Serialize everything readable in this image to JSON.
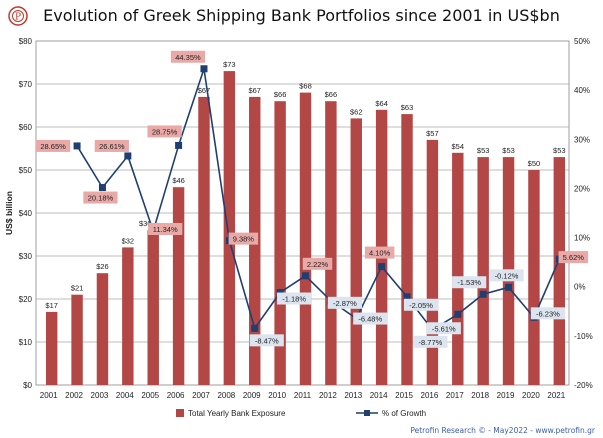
{
  "title": "Evolution of Greek Shipping Bank Portfolios since 2001 in US$bn",
  "footer": "Petrofin Research © - May2022 - www.petrofin.gr",
  "colors": {
    "bar": "#b34745",
    "line": "#1f3f73",
    "label_pos_bg": "#e8a9a7",
    "label_neg_bg": "#dbe4ef"
  },
  "chart_data": {
    "type": "bar",
    "categories": [
      "2001",
      "2002",
      "2003",
      "2004",
      "2005",
      "2006",
      "2007",
      "2008",
      "2009",
      "2010",
      "2011",
      "2012",
      "2013",
      "2014",
      "2015",
      "2016",
      "2017",
      "2018",
      "2019",
      "2020",
      "2021"
    ],
    "ylabel": "US$ billion",
    "ylim": [
      0,
      80
    ],
    "y_ticks": [
      "$0",
      "$10",
      "$20",
      "$30",
      "$40",
      "$50",
      "$60",
      "$70",
      "$80"
    ],
    "y2lim": [
      -20,
      50
    ],
    "y2_ticks": [
      "-20%",
      "-10%",
      "0%",
      "10%",
      "20%",
      "30%",
      "40%",
      "50%"
    ],
    "grid": true,
    "legend": "bottom",
    "series": [
      {
        "name": "Total Yearly Bank Exposure",
        "type": "bar",
        "axis": "left",
        "values": [
          17,
          21,
          26,
          32,
          36,
          46,
          67,
          73,
          67,
          66,
          68,
          66,
          62,
          64,
          63,
          57,
          54,
          53,
          53,
          50,
          53
        ],
        "labels": [
          "$17",
          "$21",
          "$26",
          "$32",
          "$36",
          "$46",
          "$67",
          "$73",
          "$67",
          "$66",
          "$68",
          "$66",
          "$62",
          "$64",
          "$63",
          "$57",
          "$54",
          "$53",
          "$53",
          "$50",
          "$53"
        ]
      },
      {
        "name": "% of Growth",
        "type": "line",
        "axis": "right",
        "x": [
          "2002",
          "2003",
          "2004",
          "2005",
          "2006",
          "2007",
          "2008",
          "2009",
          "2010",
          "2011",
          "2012",
          "2013",
          "2014",
          "2015",
          "2016",
          "2017",
          "2018",
          "2019",
          "2020",
          "2021"
        ],
        "values": [
          28.65,
          20.18,
          26.61,
          11.34,
          28.75,
          44.35,
          9.38,
          -8.47,
          -1.18,
          2.22,
          -2.87,
          -6.48,
          4.1,
          -2.05,
          -8.77,
          -5.61,
          -1.53,
          -0.12,
          -6.23,
          5.62
        ],
        "labels": [
          "28.65%",
          "20.18%",
          "26.61%",
          "11.34%",
          "28.75%",
          "44.35%",
          "9.38%",
          "-8.47%",
          "-1.18%",
          "2.22%",
          "-2.87%",
          "-6.48%",
          "4.10%",
          "-2.05%",
          "-8.77%",
          "-5.61%",
          "-1.53%",
          "-0.12%",
          "-6.23%",
          "5.62%"
        ]
      }
    ]
  }
}
